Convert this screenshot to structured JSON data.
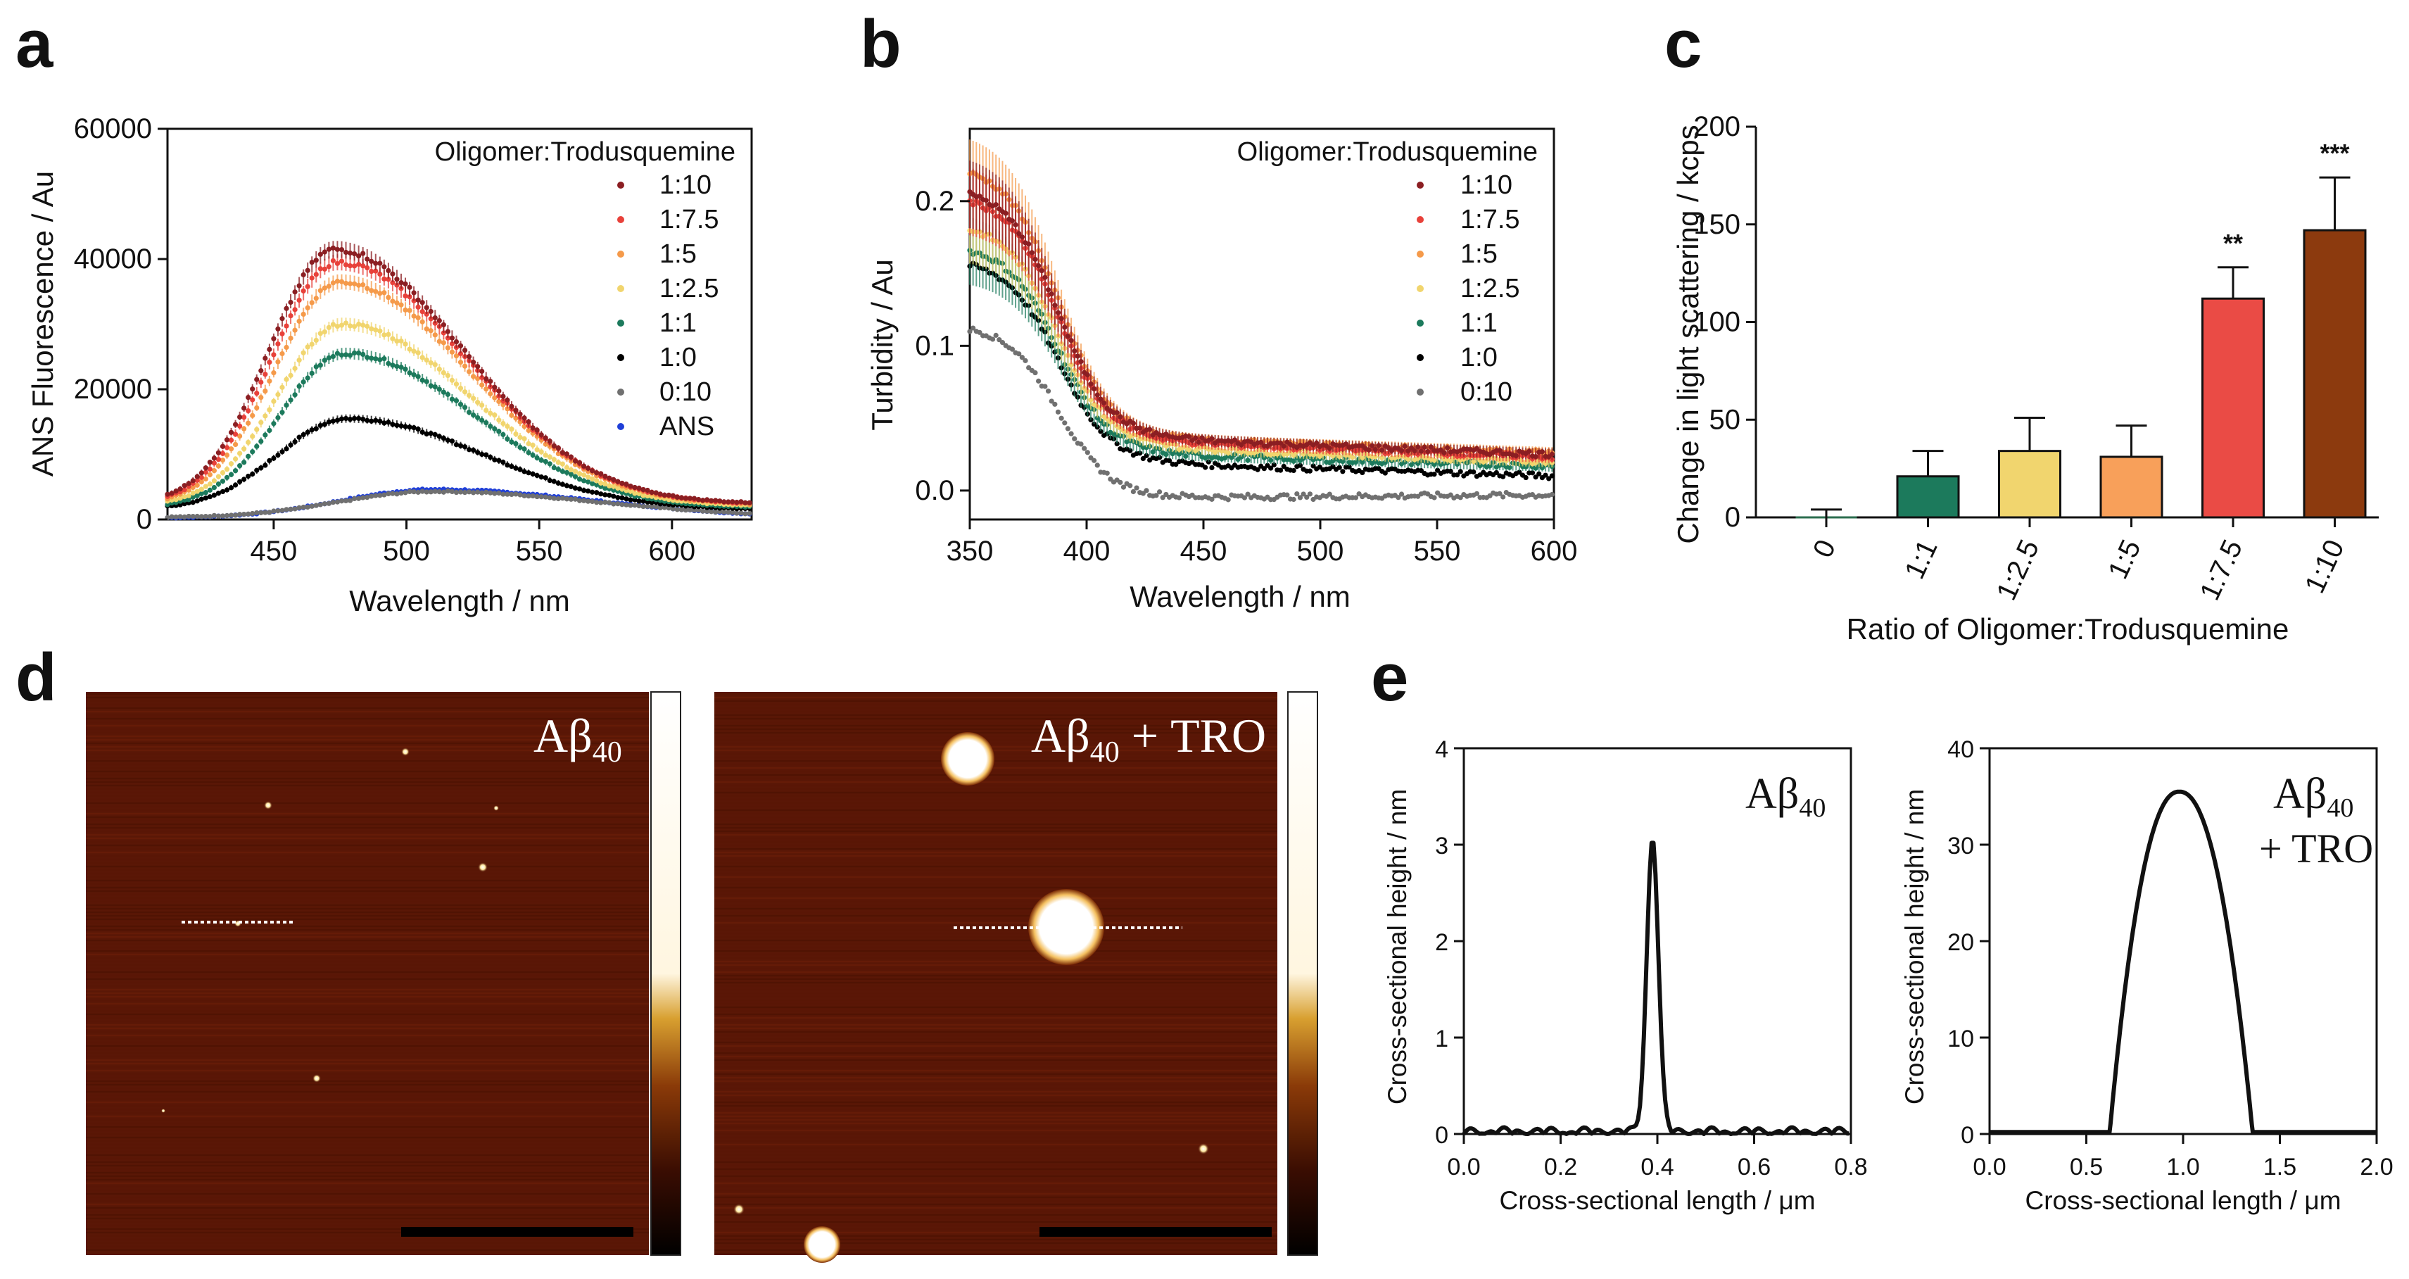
{
  "panels": {
    "a": "a",
    "b": "b",
    "c": "c",
    "d": "d",
    "e": "e"
  },
  "colors": {
    "r1_10": "#8b1e22",
    "r1_7_5": "#e8413a",
    "r1_5": "#f59a4a",
    "r1_2_5": "#f1d56e",
    "r1_1": "#1c7a5c",
    "r1_0": "#000000",
    "r0_10": "#707070",
    "ans": "#1f3fd8",
    "bar_0": "#2c6e4f",
    "bar_1_1": "#1c7a5c",
    "bar_1_2_5": "#f1d56e",
    "bar_1_5": "#f8a05a",
    "bar_1_7_5": "#ea4b45",
    "bar_1_10": "#8c3a0e",
    "afm_bg": "#5a1706"
  },
  "chart_data": [
    {
      "id": "a",
      "type": "line",
      "title": "",
      "xlabel": "Wavelength / nm",
      "ylabel": "ANS Fluorescence / Au",
      "xlim": [
        410,
        630
      ],
      "ylim": [
        0,
        60000
      ],
      "xticks": [
        "450",
        "500",
        "550",
        "600"
      ],
      "xtick_values": [
        450,
        500,
        550,
        600
      ],
      "yticks": [
        "0",
        "20000",
        "40000",
        "60000"
      ],
      "ytick_values": [
        0,
        20000,
        40000,
        60000
      ],
      "legend_title": "Oligomer:Trodusquemine",
      "legend_position": "top-right",
      "series": [
        {
          "name": "1:10",
          "color_key": "r1_10",
          "peak_x": 473,
          "peak": 41500,
          "base": 2400,
          "wl": 28,
          "wr": 55
        },
        {
          "name": "1:7.5",
          "color_key": "r1_7_5",
          "peak_x": 474,
          "peak": 39500,
          "base": 2300,
          "wl": 28,
          "wr": 55
        },
        {
          "name": "1:5",
          "color_key": "r1_5",
          "peak_x": 475,
          "peak": 36500,
          "base": 2200,
          "wl": 28,
          "wr": 55
        },
        {
          "name": "1:2.5",
          "color_key": "r1_2_5",
          "peak_x": 476,
          "peak": 30000,
          "base": 2000,
          "wl": 28,
          "wr": 55
        },
        {
          "name": "1:1",
          "color_key": "r1_1",
          "peak_x": 477,
          "peak": 25500,
          "base": 1800,
          "wl": 28,
          "wr": 55
        },
        {
          "name": "1:0",
          "color_key": "r1_0",
          "peak_x": 478,
          "peak": 15500,
          "base": 1500,
          "wl": 30,
          "wr": 58
        },
        {
          "name": "0:10",
          "color_key": "r0_10",
          "peak_x": 510,
          "peak": 4300,
          "base": 300,
          "wl": 40,
          "wr": 70
        },
        {
          "name": "ANS",
          "color_key": "ans",
          "peak_x": 510,
          "peak": 4600,
          "base": 200,
          "wl": 40,
          "wr": 70
        }
      ]
    },
    {
      "id": "b",
      "type": "line",
      "title": "",
      "xlabel": "Wavelength / nm",
      "ylabel": "Turbidity / Au",
      "xlim": [
        350,
        600
      ],
      "ylim": [
        -0.02,
        0.25
      ],
      "xticks": [
        "350",
        "400",
        "450",
        "500",
        "550",
        "600"
      ],
      "xtick_values": [
        350,
        400,
        450,
        500,
        550,
        600
      ],
      "yticks": [
        "0.0",
        "0.1",
        "0.2"
      ],
      "ytick_values": [
        0,
        0.1,
        0.2
      ],
      "legend_title": "Oligomer:Trodusquemine",
      "legend_position": "top-right",
      "series": [
        {
          "name": "1:10",
          "color_key": "r1_10",
          "start": 0.21,
          "plateau": 0.036,
          "end": 0.025
        },
        {
          "name": "1:7.5",
          "color_key": "r1_7_5",
          "start": 0.205,
          "plateau": 0.034,
          "end": 0.023
        },
        {
          "name": "1:5",
          "color_key": "r1_5",
          "start": 0.225,
          "plateau": 0.036,
          "end": 0.026
        },
        {
          "name": "1:2.5",
          "color_key": "r1_2_5",
          "start": 0.185,
          "plateau": 0.03,
          "end": 0.02
        },
        {
          "name": "1:1",
          "color_key": "r1_1",
          "start": 0.17,
          "plateau": 0.025,
          "end": 0.017
        },
        {
          "name": "1:0",
          "color_key": "r1_0",
          "start": 0.16,
          "plateau": 0.019,
          "end": 0.01
        },
        {
          "name": "0:10",
          "color_key": "r0_10",
          "start": 0.115,
          "plateau": -0.005,
          "end": -0.003
        }
      ]
    },
    {
      "id": "c",
      "type": "bar",
      "title": "",
      "xlabel": "Ratio of Oligomer:Trodusquemine",
      "ylabel": "Change in light scattering / kcps",
      "ylim": [
        0,
        200
      ],
      "yticks": [
        "0",
        "50",
        "100",
        "150",
        "200"
      ],
      "ytick_values": [
        0,
        50,
        100,
        150,
        200
      ],
      "categories": [
        "0",
        "1:1",
        "1:2.5",
        "1:5",
        "1:7.5",
        "1:10"
      ],
      "values": [
        0,
        21,
        34,
        31,
        112,
        147
      ],
      "errors": [
        4,
        13,
        17,
        16,
        16,
        27
      ],
      "significance": [
        "",
        "",
        "",
        "",
        "**",
        "***"
      ],
      "color_keys": [
        "bar_0",
        "bar_1_1",
        "bar_1_2_5",
        "bar_1_5",
        "bar_1_7_5",
        "bar_1_10"
      ]
    },
    {
      "id": "e1",
      "type": "line",
      "title": "",
      "xlabel": "Cross-sectional length / μm",
      "ylabel": "Cross-sectional height / nm",
      "xlim": [
        0,
        0.8
      ],
      "ylim": [
        0,
        4
      ],
      "xticks": [
        "0.0",
        "0.2",
        "0.4",
        "0.6",
        "0.8"
      ],
      "xtick_values": [
        0,
        0.2,
        0.4,
        0.6,
        0.8
      ],
      "yticks": [
        "0",
        "1",
        "2",
        "3",
        "4"
      ],
      "ytick_values": [
        0,
        1,
        2,
        3,
        4
      ],
      "annotation_main": "Aβ",
      "annotation_sub": "40",
      "annotation_extra": "",
      "series": [
        {
          "name": "Aβ40",
          "peak_x": 0.39,
          "peak": 3.05,
          "sigma": 0.012,
          "noise": 0.07
        }
      ]
    },
    {
      "id": "e2",
      "type": "line",
      "title": "",
      "xlabel": "Cross-sectional length / μm",
      "ylabel": "Cross-sectional height / nm",
      "xlim": [
        0,
        2.0
      ],
      "ylim": [
        0,
        40
      ],
      "xticks": [
        "0.0",
        "0.5",
        "1.0",
        "1.5",
        "2.0"
      ],
      "xtick_values": [
        0,
        0.5,
        1.0,
        1.5,
        2.0
      ],
      "yticks": [
        "0",
        "10",
        "20",
        "30",
        "40"
      ],
      "ytick_values": [
        0,
        10,
        20,
        30,
        40
      ],
      "annotation_main": "Aβ",
      "annotation_sub": "40",
      "annotation_extra": "+ TRO",
      "series": [
        {
          "name": "Aβ40 + TRO",
          "start_x": 0.62,
          "end_x": 1.36,
          "peak_x": 0.98,
          "peak": 35.5
        }
      ]
    }
  ],
  "afm": {
    "left_label_main": "Aβ",
    "left_label_sub": "40",
    "right_label_main": "Aβ",
    "right_label_sub": "40",
    "right_label_extra": " + TRO"
  }
}
